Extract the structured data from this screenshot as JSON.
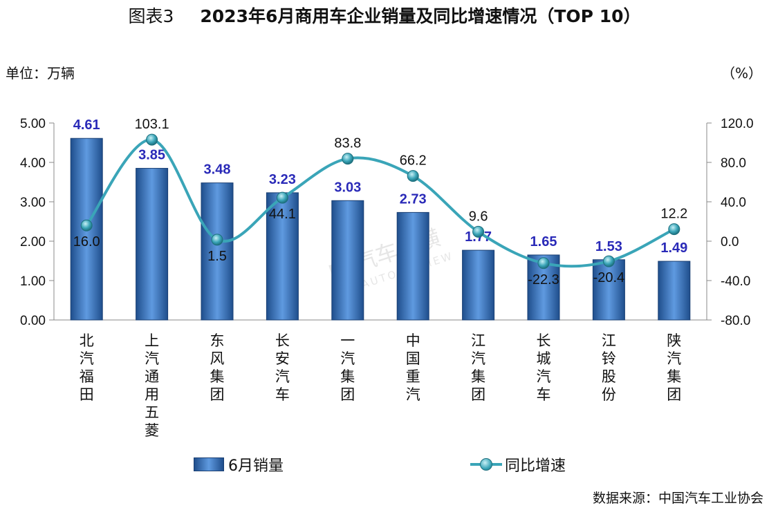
{
  "title": {
    "figure": "图表3",
    "main": "2023年6月商用车企业销量及同比增速情况（TOP 10）"
  },
  "left_unit": "单位：万辆",
  "right_unit": "（%）",
  "source": "数据来源：中国汽车工业协会",
  "watermark": {
    "cn": "汽车纵横",
    "en": "AUTO REVIEW"
  },
  "colors": {
    "bar": "#3a72c4",
    "bar_label": "#2a2ab8",
    "line": "#3aa5b8"
  },
  "chart_data": {
    "type": "bar",
    "categories": [
      "北汽福田",
      "上汽通用五菱",
      "东风集团",
      "长安汽车",
      "一汽集团",
      "中国重汽",
      "江汽集团",
      "长城汽车",
      "江铃股份",
      "陕汽集团"
    ],
    "series": [
      {
        "name": "6月销量",
        "type": "bar",
        "axis": "left",
        "values": [
          4.61,
          3.85,
          3.48,
          3.23,
          3.03,
          2.73,
          1.77,
          1.65,
          1.53,
          1.49
        ],
        "labels": [
          "4.61",
          "3.85",
          "3.48",
          "3.23",
          "3.03",
          "2.73",
          "1.77",
          "1.65",
          "1.53",
          "1.49"
        ]
      },
      {
        "name": "同比增速",
        "type": "line",
        "axis": "right",
        "values": [
          16.0,
          103.1,
          1.5,
          44.1,
          83.8,
          66.2,
          9.6,
          -22.3,
          -20.4,
          12.2
        ],
        "labels": [
          "16.0",
          "103.1",
          "1.5",
          "44.1",
          "83.8",
          "66.2",
          "9.6",
          "-22.3",
          "-20.4",
          "12.2"
        ]
      }
    ],
    "y_left": {
      "ylim": [
        0,
        5
      ],
      "ticks": [
        "0.00",
        "1.00",
        "2.00",
        "3.00",
        "4.00",
        "5.00"
      ]
    },
    "y_right": {
      "ylim": [
        -80,
        120
      ],
      "ticks": [
        "-80.0",
        "-40.0",
        "0.0",
        "40.0",
        "80.0",
        "120.0"
      ]
    },
    "grid": false,
    "legend": "bottom"
  }
}
